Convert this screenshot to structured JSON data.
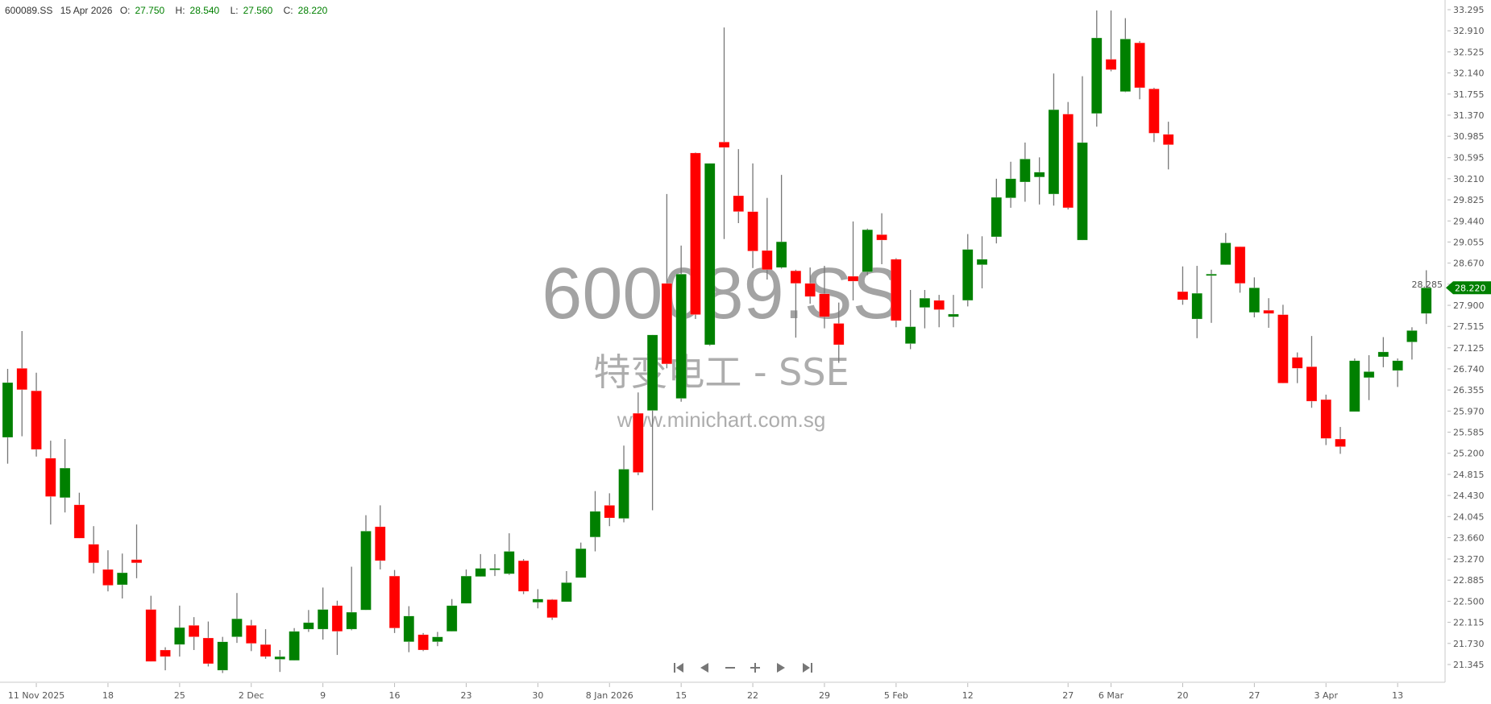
{
  "header": {
    "symbol": "600089.SS",
    "date": "15 Apr 2026",
    "open_label": "O:",
    "open": "27.750",
    "high_label": "H:",
    "high": "28.540",
    "low_label": "L:",
    "low": "27.560",
    "close_label": "C:",
    "close": "28.220"
  },
  "watermark": {
    "symbol": "600089.SS",
    "name": "特变电工 - SSE",
    "site": "www.minichart.com.sg"
  },
  "navigation": {
    "buttons": [
      {
        "name": "first-icon",
        "glyph": "first"
      },
      {
        "name": "prev-icon",
        "glyph": "prev"
      },
      {
        "name": "zoom-out-icon",
        "glyph": "minus"
      },
      {
        "name": "zoom-in-icon",
        "glyph": "plus"
      },
      {
        "name": "next-icon",
        "glyph": "next"
      },
      {
        "name": "last-icon",
        "glyph": "last"
      }
    ]
  },
  "colors": {
    "up": "#008000",
    "down": "#ff0000",
    "wick": "#777777",
    "tag": "#008000"
  },
  "chart_data": {
    "type": "candlestick",
    "title": "",
    "ylim": [
      21.345,
      33.295
    ],
    "y_ticks": [
      "33.295",
      "32.910",
      "32.525",
      "32.140",
      "31.755",
      "31.370",
      "30.985",
      "30.595",
      "30.210",
      "29.825",
      "29.440",
      "29.055",
      "28.670",
      "28.285",
      "27.900",
      "27.515",
      "27.125",
      "26.740",
      "26.355",
      "25.970",
      "25.585",
      "25.200",
      "24.815",
      "24.430",
      "24.045",
      "23.660",
      "23.270",
      "22.885",
      "22.500",
      "22.115",
      "21.730",
      "21.345"
    ],
    "x_ticks": [
      {
        "label": "11 Nov 2025",
        "index": 2
      },
      {
        "label": "18",
        "index": 7
      },
      {
        "label": "25",
        "index": 12
      },
      {
        "label": "2 Dec",
        "index": 17
      },
      {
        "label": "9",
        "index": 22
      },
      {
        "label": "16",
        "index": 27
      },
      {
        "label": "23",
        "index": 32
      },
      {
        "label": "30",
        "index": 37
      },
      {
        "label": "8 Jan 2026",
        "index": 42
      },
      {
        "label": "15",
        "index": 47
      },
      {
        "label": "22",
        "index": 52
      },
      {
        "label": "29",
        "index": 57
      },
      {
        "label": "5 Feb",
        "index": 62
      },
      {
        "label": "12",
        "index": 67
      },
      {
        "label": "27",
        "index": 74
      },
      {
        "label": "6 Mar",
        "index": 77
      },
      {
        "label": "20",
        "index": 82
      },
      {
        "label": "27",
        "index": 87
      },
      {
        "label": "3 Apr",
        "index": 92
      },
      {
        "label": "13",
        "index": 97
      }
    ],
    "last_price": "28.220",
    "candles_ohlc": [
      [
        25.49,
        26.74,
        25.01,
        26.49
      ],
      [
        26.75,
        27.43,
        25.51,
        26.36
      ],
      [
        26.34,
        26.67,
        25.14,
        25.27
      ],
      [
        25.11,
        25.43,
        23.9,
        24.41
      ],
      [
        24.39,
        25.46,
        24.12,
        24.93
      ],
      [
        24.26,
        24.48,
        23.65,
        23.65
      ],
      [
        23.54,
        23.87,
        23.01,
        23.2
      ],
      [
        23.08,
        23.43,
        22.68,
        22.79
      ],
      [
        22.8,
        23.37,
        22.55,
        23.02
      ],
      [
        23.26,
        23.9,
        22.92,
        23.2
      ],
      [
        22.35,
        22.6,
        21.4,
        21.4
      ],
      [
        21.61,
        21.66,
        21.24,
        21.49
      ],
      [
        21.71,
        22.42,
        21.49,
        22.02
      ],
      [
        22.06,
        22.21,
        21.61,
        21.85
      ],
      [
        21.83,
        22.13,
        21.31,
        21.36
      ],
      [
        21.24,
        21.85,
        21.19,
        21.76
      ],
      [
        21.85,
        22.65,
        21.74,
        22.18
      ],
      [
        22.06,
        22.16,
        21.59,
        21.73
      ],
      [
        21.71,
        21.99,
        21.45,
        21.49
      ],
      [
        21.44,
        21.61,
        21.21,
        21.49
      ],
      [
        21.42,
        22.01,
        21.42,
        21.95
      ],
      [
        21.99,
        22.34,
        21.94,
        22.11
      ],
      [
        21.99,
        22.75,
        21.8,
        22.35
      ],
      [
        22.42,
        22.51,
        21.52,
        21.95
      ],
      [
        21.99,
        23.13,
        21.97,
        22.3
      ],
      [
        22.34,
        24.07,
        22.34,
        23.78
      ],
      [
        23.86,
        24.25,
        23.08,
        23.24
      ],
      [
        22.96,
        23.07,
        21.92,
        22.01
      ],
      [
        21.76,
        22.41,
        21.57,
        22.23
      ],
      [
        21.89,
        21.92,
        21.59,
        21.61
      ],
      [
        21.76,
        21.94,
        21.68,
        21.85
      ],
      [
        21.95,
        22.54,
        21.95,
        22.42
      ],
      [
        22.46,
        23.08,
        22.46,
        22.96
      ],
      [
        22.95,
        23.36,
        22.95,
        23.1
      ],
      [
        23.07,
        23.36,
        22.96,
        23.1
      ],
      [
        23.0,
        23.74,
        22.98,
        23.41
      ],
      [
        23.24,
        23.27,
        22.63,
        22.68
      ],
      [
        22.48,
        22.72,
        22.37,
        22.54
      ],
      [
        22.53,
        22.54,
        22.16,
        22.2
      ],
      [
        22.49,
        23.05,
        22.49,
        22.84
      ],
      [
        22.93,
        23.57,
        22.93,
        23.46
      ],
      [
        23.67,
        24.51,
        23.41,
        24.14
      ],
      [
        24.25,
        24.47,
        23.87,
        24.02
      ],
      [
        24.01,
        25.34,
        23.94,
        24.91
      ],
      [
        25.93,
        26.31,
        24.8,
        24.85
      ],
      [
        25.98,
        27.36,
        24.16,
        27.36
      ],
      [
        28.3,
        29.93,
        26.75,
        26.83
      ],
      [
        26.2,
        28.99,
        26.14,
        28.47
      ],
      [
        30.68,
        30.69,
        27.65,
        27.73
      ],
      [
        27.18,
        30.49,
        27.16,
        30.49
      ],
      [
        30.88,
        32.97,
        29.11,
        30.78
      ],
      [
        29.9,
        30.75,
        29.4,
        29.61
      ],
      [
        29.61,
        30.49,
        28.58,
        28.89
      ],
      [
        28.9,
        29.86,
        28.37,
        28.55
      ],
      [
        28.59,
        30.28,
        28.57,
        29.06
      ],
      [
        28.53,
        28.55,
        27.31,
        28.3
      ],
      [
        28.3,
        28.59,
        27.93,
        28.06
      ],
      [
        28.11,
        28.62,
        27.48,
        27.69
      ],
      [
        27.57,
        27.95,
        26.85,
        27.18
      ],
      [
        28.43,
        29.43,
        27.99,
        28.34
      ],
      [
        28.51,
        29.3,
        28.45,
        29.28
      ],
      [
        29.19,
        29.58,
        28.65,
        29.09
      ],
      [
        28.74,
        28.76,
        27.5,
        27.62
      ],
      [
        27.2,
        28.18,
        27.1,
        27.51
      ],
      [
        27.86,
        28.18,
        27.48,
        28.03
      ],
      [
        27.99,
        28.09,
        27.5,
        27.82
      ],
      [
        27.69,
        28.09,
        27.5,
        27.74
      ],
      [
        27.99,
        29.2,
        27.88,
        28.92
      ],
      [
        28.64,
        29.16,
        28.21,
        28.74
      ],
      [
        29.15,
        30.21,
        29.03,
        29.87
      ],
      [
        29.86,
        30.52,
        29.68,
        30.21
      ],
      [
        30.15,
        30.87,
        29.79,
        30.57
      ],
      [
        30.24,
        30.6,
        29.74,
        30.33
      ],
      [
        29.93,
        32.13,
        29.72,
        31.47
      ],
      [
        31.39,
        31.61,
        29.65,
        29.68
      ],
      [
        29.09,
        32.08,
        29.09,
        30.87
      ],
      [
        31.4,
        33.28,
        31.16,
        32.78
      ],
      [
        32.39,
        33.28,
        32.17,
        32.2
      ],
      [
        31.8,
        33.14,
        31.79,
        32.76
      ],
      [
        32.69,
        32.72,
        31.66,
        31.87
      ],
      [
        31.85,
        31.87,
        30.88,
        31.04
      ],
      [
        31.02,
        31.25,
        30.38,
        30.83
      ],
      [
        28.15,
        28.61,
        27.91,
        28.0
      ],
      [
        27.65,
        28.62,
        27.3,
        28.12
      ],
      [
        28.45,
        28.55,
        27.58,
        28.47
      ],
      [
        28.64,
        29.22,
        28.64,
        29.04
      ],
      [
        28.97,
        28.97,
        28.13,
        28.3
      ],
      [
        27.77,
        28.41,
        27.68,
        28.22
      ],
      [
        27.81,
        28.03,
        27.49,
        27.75
      ],
      [
        27.73,
        27.91,
        26.48,
        26.48
      ],
      [
        26.95,
        27.04,
        26.48,
        26.75
      ],
      [
        26.78,
        27.34,
        26.03,
        26.15
      ],
      [
        26.18,
        26.27,
        25.35,
        25.47
      ],
      [
        25.46,
        25.68,
        25.19,
        25.32
      ],
      [
        25.96,
        26.93,
        25.96,
        26.89
      ],
      [
        26.58,
        26.99,
        26.17,
        26.69
      ],
      [
        26.96,
        27.32,
        26.77,
        27.05
      ],
      [
        26.71,
        26.93,
        26.41,
        26.89
      ],
      [
        27.23,
        27.5,
        26.91,
        27.44
      ],
      [
        27.75,
        28.54,
        27.56,
        28.22
      ]
    ]
  }
}
